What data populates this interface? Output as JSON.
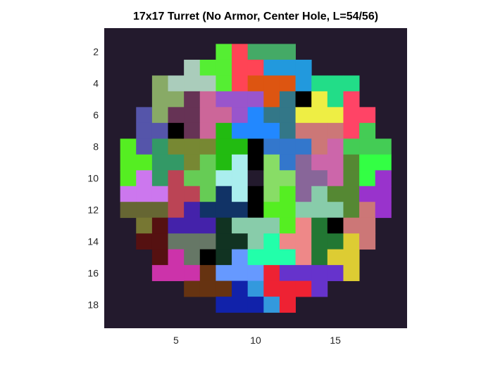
{
  "chart_data": {
    "type": "heatmap",
    "title": "17x17 Turret (No Armor, Center Hole, L=54/56)",
    "xlabel": "",
    "ylabel": "",
    "x_ticks": [
      "5",
      "10",
      "15"
    ],
    "y_ticks": [
      "2",
      "4",
      "6",
      "8",
      "10",
      "12",
      "14",
      "16",
      "18"
    ],
    "xlim": [
      0.5,
      19.5
    ],
    "ylim": [
      0.5,
      19.5
    ],
    "y_direction": "reverse",
    "background_color": "#231a2d",
    "grid": false,
    "legend": "none",
    "cells": [
      {
        "r": 2,
        "c": 8,
        "color": "#55ee33"
      },
      {
        "r": 2,
        "c": 9,
        "color": "#ff4455"
      },
      {
        "r": 2,
        "c": 10,
        "color": "#44aa66"
      },
      {
        "r": 2,
        "c": 11,
        "color": "#44aa66"
      },
      {
        "r": 2,
        "c": 12,
        "color": "#44aa66"
      },
      {
        "r": 3,
        "c": 6,
        "color": "#aaccbb"
      },
      {
        "r": 3,
        "c": 7,
        "color": "#55ee33"
      },
      {
        "r": 3,
        "c": 8,
        "color": "#55ee33"
      },
      {
        "r": 3,
        "c": 9,
        "color": "#ff4455"
      },
      {
        "r": 3,
        "c": 10,
        "color": "#ff4455"
      },
      {
        "r": 3,
        "c": 11,
        "color": "#2299dd"
      },
      {
        "r": 3,
        "c": 12,
        "color": "#2299dd"
      },
      {
        "r": 3,
        "c": 13,
        "color": "#2299dd"
      },
      {
        "r": 4,
        "c": 4,
        "color": "#88aa66"
      },
      {
        "r": 4,
        "c": 5,
        "color": "#aaccbb"
      },
      {
        "r": 4,
        "c": 6,
        "color": "#aaccbb"
      },
      {
        "r": 4,
        "c": 7,
        "color": "#aaccbb"
      },
      {
        "r": 4,
        "c": 8,
        "color": "#55ee33"
      },
      {
        "r": 4,
        "c": 9,
        "color": "#ff4455"
      },
      {
        "r": 4,
        "c": 10,
        "color": "#dd5511"
      },
      {
        "r": 4,
        "c": 11,
        "color": "#dd5511"
      },
      {
        "r": 4,
        "c": 12,
        "color": "#dd5511"
      },
      {
        "r": 4,
        "c": 13,
        "color": "#2299dd"
      },
      {
        "r": 4,
        "c": 14,
        "color": "#22dd88"
      },
      {
        "r": 4,
        "c": 15,
        "color": "#22dd88"
      },
      {
        "r": 4,
        "c": 16,
        "color": "#22dd88"
      },
      {
        "r": 5,
        "c": 4,
        "color": "#88aa66"
      },
      {
        "r": 5,
        "c": 5,
        "color": "#88aa66"
      },
      {
        "r": 5,
        "c": 6,
        "color": "#663355"
      },
      {
        "r": 5,
        "c": 7,
        "color": "#cc6699"
      },
      {
        "r": 5,
        "c": 8,
        "color": "#9955cc"
      },
      {
        "r": 5,
        "c": 9,
        "color": "#9955cc"
      },
      {
        "r": 5,
        "c": 10,
        "color": "#9955cc"
      },
      {
        "r": 5,
        "c": 11,
        "color": "#dd5511"
      },
      {
        "r": 5,
        "c": 12,
        "color": "#337788"
      },
      {
        "r": 5,
        "c": 13,
        "color": "#000000"
      },
      {
        "r": 5,
        "c": 14,
        "color": "#eeee44"
      },
      {
        "r": 5,
        "c": 15,
        "color": "#22dd88"
      },
      {
        "r": 5,
        "c": 16,
        "color": "#ff4466"
      },
      {
        "r": 6,
        "c": 3,
        "color": "#5555aa"
      },
      {
        "r": 6,
        "c": 4,
        "color": "#88aa66"
      },
      {
        "r": 6,
        "c": 5,
        "color": "#663355"
      },
      {
        "r": 6,
        "c": 6,
        "color": "#663355"
      },
      {
        "r": 6,
        "c": 7,
        "color": "#cc6699"
      },
      {
        "r": 6,
        "c": 8,
        "color": "#cc6699"
      },
      {
        "r": 6,
        "c": 9,
        "color": "#9955cc"
      },
      {
        "r": 6,
        "c": 10,
        "color": "#2288ff"
      },
      {
        "r": 6,
        "c": 11,
        "color": "#337788"
      },
      {
        "r": 6,
        "c": 12,
        "color": "#337788"
      },
      {
        "r": 6,
        "c": 13,
        "color": "#eeee44"
      },
      {
        "r": 6,
        "c": 14,
        "color": "#eeee44"
      },
      {
        "r": 6,
        "c": 15,
        "color": "#eeee44"
      },
      {
        "r": 6,
        "c": 16,
        "color": "#ff4466"
      },
      {
        "r": 6,
        "c": 17,
        "color": "#ff4466"
      },
      {
        "r": 7,
        "c": 3,
        "color": "#5555aa"
      },
      {
        "r": 7,
        "c": 4,
        "color": "#5555aa"
      },
      {
        "r": 7,
        "c": 5,
        "color": "#000000"
      },
      {
        "r": 7,
        "c": 6,
        "color": "#663355"
      },
      {
        "r": 7,
        "c": 7,
        "color": "#cc6699"
      },
      {
        "r": 7,
        "c": 8,
        "color": "#22bb11"
      },
      {
        "r": 7,
        "c": 9,
        "color": "#2288ff"
      },
      {
        "r": 7,
        "c": 10,
        "color": "#2288ff"
      },
      {
        "r": 7,
        "c": 11,
        "color": "#2288ff"
      },
      {
        "r": 7,
        "c": 12,
        "color": "#337788"
      },
      {
        "r": 7,
        "c": 13,
        "color": "#cc7777"
      },
      {
        "r": 7,
        "c": 14,
        "color": "#cc7777"
      },
      {
        "r": 7,
        "c": 15,
        "color": "#cc7777"
      },
      {
        "r": 7,
        "c": 16,
        "color": "#ff4466"
      },
      {
        "r": 7,
        "c": 17,
        "color": "#44cc55"
      },
      {
        "r": 8,
        "c": 2,
        "color": "#55ee22"
      },
      {
        "r": 8,
        "c": 3,
        "color": "#5555aa"
      },
      {
        "r": 8,
        "c": 4,
        "color": "#339966"
      },
      {
        "r": 8,
        "c": 5,
        "color": "#778833"
      },
      {
        "r": 8,
        "c": 6,
        "color": "#778833"
      },
      {
        "r": 8,
        "c": 7,
        "color": "#778833"
      },
      {
        "r": 8,
        "c": 8,
        "color": "#22bb11"
      },
      {
        "r": 8,
        "c": 9,
        "color": "#22bb11"
      },
      {
        "r": 8,
        "c": 10,
        "color": "#000000"
      },
      {
        "r": 8,
        "c": 11,
        "color": "#3377cc"
      },
      {
        "r": 8,
        "c": 12,
        "color": "#3377cc"
      },
      {
        "r": 8,
        "c": 13,
        "color": "#3377cc"
      },
      {
        "r": 8,
        "c": 14,
        "color": "#cc7777"
      },
      {
        "r": 8,
        "c": 15,
        "color": "#cc66aa"
      },
      {
        "r": 8,
        "c": 16,
        "color": "#44cc55"
      },
      {
        "r": 8,
        "c": 17,
        "color": "#44cc55"
      },
      {
        "r": 8,
        "c": 18,
        "color": "#44cc55"
      },
      {
        "r": 9,
        "c": 2,
        "color": "#55ee22"
      },
      {
        "r": 9,
        "c": 3,
        "color": "#55ee22"
      },
      {
        "r": 9,
        "c": 4,
        "color": "#339966"
      },
      {
        "r": 9,
        "c": 5,
        "color": "#339966"
      },
      {
        "r": 9,
        "c": 6,
        "color": "#778833"
      },
      {
        "r": 9,
        "c": 7,
        "color": "#66cc55"
      },
      {
        "r": 9,
        "c": 8,
        "color": "#22bb11"
      },
      {
        "r": 9,
        "c": 9,
        "color": "#aaeeee"
      },
      {
        "r": 9,
        "c": 10,
        "color": "#000000"
      },
      {
        "r": 9,
        "c": 11,
        "color": "#88dd66"
      },
      {
        "r": 9,
        "c": 12,
        "color": "#3377cc"
      },
      {
        "r": 9,
        "c": 13,
        "color": "#886699"
      },
      {
        "r": 9,
        "c": 14,
        "color": "#cc66aa"
      },
      {
        "r": 9,
        "c": 15,
        "color": "#cc66aa"
      },
      {
        "r": 9,
        "c": 16,
        "color": "#558833"
      },
      {
        "r": 9,
        "c": 17,
        "color": "#33ff44"
      },
      {
        "r": 9,
        "c": 18,
        "color": "#33ff44"
      },
      {
        "r": 10,
        "c": 2,
        "color": "#55ee22"
      },
      {
        "r": 10,
        "c": 3,
        "color": "#cc77ee"
      },
      {
        "r": 10,
        "c": 4,
        "color": "#339966"
      },
      {
        "r": 10,
        "c": 5,
        "color": "#bb4455"
      },
      {
        "r": 10,
        "c": 6,
        "color": "#66cc55"
      },
      {
        "r": 10,
        "c": 7,
        "color": "#66cc55"
      },
      {
        "r": 10,
        "c": 8,
        "color": "#aaeeee"
      },
      {
        "r": 10,
        "c": 9,
        "color": "#aaeeee"
      },
      {
        "r": 10,
        "c": 10,
        "color": "#231a2d"
      },
      {
        "r": 10,
        "c": 11,
        "color": "#88dd66"
      },
      {
        "r": 10,
        "c": 12,
        "color": "#88dd66"
      },
      {
        "r": 10,
        "c": 13,
        "color": "#886699"
      },
      {
        "r": 10,
        "c": 14,
        "color": "#886699"
      },
      {
        "r": 10,
        "c": 15,
        "color": "#cc66aa"
      },
      {
        "r": 10,
        "c": 16,
        "color": "#558833"
      },
      {
        "r": 10,
        "c": 17,
        "color": "#33ff44"
      },
      {
        "r": 10,
        "c": 18,
        "color": "#9933cc"
      },
      {
        "r": 11,
        "c": 2,
        "color": "#cc77ee"
      },
      {
        "r": 11,
        "c": 3,
        "color": "#cc77ee"
      },
      {
        "r": 11,
        "c": 4,
        "color": "#cc77ee"
      },
      {
        "r": 11,
        "c": 5,
        "color": "#bb4455"
      },
      {
        "r": 11,
        "c": 6,
        "color": "#bb4455"
      },
      {
        "r": 11,
        "c": 7,
        "color": "#66cc55"
      },
      {
        "r": 11,
        "c": 8,
        "color": "#113366"
      },
      {
        "r": 11,
        "c": 9,
        "color": "#aaeeee"
      },
      {
        "r": 11,
        "c": 10,
        "color": "#000000"
      },
      {
        "r": 11,
        "c": 11,
        "color": "#88dd66"
      },
      {
        "r": 11,
        "c": 12,
        "color": "#55ee22"
      },
      {
        "r": 11,
        "c": 13,
        "color": "#886699"
      },
      {
        "r": 11,
        "c": 14,
        "color": "#88ccaa"
      },
      {
        "r": 11,
        "c": 15,
        "color": "#558833"
      },
      {
        "r": 11,
        "c": 16,
        "color": "#558833"
      },
      {
        "r": 11,
        "c": 17,
        "color": "#9933cc"
      },
      {
        "r": 11,
        "c": 18,
        "color": "#9933cc"
      },
      {
        "r": 12,
        "c": 2,
        "color": "#666633"
      },
      {
        "r": 12,
        "c": 3,
        "color": "#666633"
      },
      {
        "r": 12,
        "c": 4,
        "color": "#666633"
      },
      {
        "r": 12,
        "c": 5,
        "color": "#bb4455"
      },
      {
        "r": 12,
        "c": 6,
        "color": "#4422aa"
      },
      {
        "r": 12,
        "c": 7,
        "color": "#113366"
      },
      {
        "r": 12,
        "c": 8,
        "color": "#113366"
      },
      {
        "r": 12,
        "c": 9,
        "color": "#113366"
      },
      {
        "r": 12,
        "c": 10,
        "color": "#000000"
      },
      {
        "r": 12,
        "c": 11,
        "color": "#55ee22"
      },
      {
        "r": 12,
        "c": 12,
        "color": "#55ee22"
      },
      {
        "r": 12,
        "c": 13,
        "color": "#88ccaa"
      },
      {
        "r": 12,
        "c": 14,
        "color": "#88ccaa"
      },
      {
        "r": 12,
        "c": 15,
        "color": "#88ccaa"
      },
      {
        "r": 12,
        "c": 16,
        "color": "#558833"
      },
      {
        "r": 12,
        "c": 17,
        "color": "#cc7777"
      },
      {
        "r": 12,
        "c": 18,
        "color": "#9933cc"
      },
      {
        "r": 13,
        "c": 3,
        "color": "#777733"
      },
      {
        "r": 13,
        "c": 4,
        "color": "#551111"
      },
      {
        "r": 13,
        "c": 5,
        "color": "#4422aa"
      },
      {
        "r": 13,
        "c": 6,
        "color": "#4422aa"
      },
      {
        "r": 13,
        "c": 7,
        "color": "#4422aa"
      },
      {
        "r": 13,
        "c": 8,
        "color": "#113322"
      },
      {
        "r": 13,
        "c": 9,
        "color": "#88ccaa"
      },
      {
        "r": 13,
        "c": 10,
        "color": "#88ccaa"
      },
      {
        "r": 13,
        "c": 11,
        "color": "#88ccaa"
      },
      {
        "r": 13,
        "c": 12,
        "color": "#55ee22"
      },
      {
        "r": 13,
        "c": 13,
        "color": "#ee8888"
      },
      {
        "r": 13,
        "c": 14,
        "color": "#227733"
      },
      {
        "r": 13,
        "c": 15,
        "color": "#000000"
      },
      {
        "r": 13,
        "c": 16,
        "color": "#cc7777"
      },
      {
        "r": 13,
        "c": 17,
        "color": "#cc7777"
      },
      {
        "r": 14,
        "c": 3,
        "color": "#551111"
      },
      {
        "r": 14,
        "c": 4,
        "color": "#551111"
      },
      {
        "r": 14,
        "c": 5,
        "color": "#667766"
      },
      {
        "r": 14,
        "c": 6,
        "color": "#667766"
      },
      {
        "r": 14,
        "c": 7,
        "color": "#667766"
      },
      {
        "r": 14,
        "c": 8,
        "color": "#113322"
      },
      {
        "r": 14,
        "c": 9,
        "color": "#113322"
      },
      {
        "r": 14,
        "c": 10,
        "color": "#88ccaa"
      },
      {
        "r": 14,
        "c": 11,
        "color": "#22ffaa"
      },
      {
        "r": 14,
        "c": 12,
        "color": "#ee8888"
      },
      {
        "r": 14,
        "c": 13,
        "color": "#ee8888"
      },
      {
        "r": 14,
        "c": 14,
        "color": "#227733"
      },
      {
        "r": 14,
        "c": 15,
        "color": "#227733"
      },
      {
        "r": 14,
        "c": 16,
        "color": "#ddcc33"
      },
      {
        "r": 14,
        "c": 17,
        "color": "#cc7777"
      },
      {
        "r": 15,
        "c": 4,
        "color": "#551111"
      },
      {
        "r": 15,
        "c": 5,
        "color": "#cc33aa"
      },
      {
        "r": 15,
        "c": 6,
        "color": "#667766"
      },
      {
        "r": 15,
        "c": 7,
        "color": "#000000"
      },
      {
        "r": 15,
        "c": 8,
        "color": "#113322"
      },
      {
        "r": 15,
        "c": 9,
        "color": "#6699ff"
      },
      {
        "r": 15,
        "c": 10,
        "color": "#22ffaa"
      },
      {
        "r": 15,
        "c": 11,
        "color": "#22ffaa"
      },
      {
        "r": 15,
        "c": 12,
        "color": "#22ffaa"
      },
      {
        "r": 15,
        "c": 13,
        "color": "#ee8888"
      },
      {
        "r": 15,
        "c": 14,
        "color": "#227733"
      },
      {
        "r": 15,
        "c": 15,
        "color": "#ddcc33"
      },
      {
        "r": 15,
        "c": 16,
        "color": "#ddcc33"
      },
      {
        "r": 16,
        "c": 4,
        "color": "#cc33aa"
      },
      {
        "r": 16,
        "c": 5,
        "color": "#cc33aa"
      },
      {
        "r": 16,
        "c": 6,
        "color": "#cc33aa"
      },
      {
        "r": 16,
        "c": 7,
        "color": "#663311"
      },
      {
        "r": 16,
        "c": 8,
        "color": "#6699ff"
      },
      {
        "r": 16,
        "c": 9,
        "color": "#6699ff"
      },
      {
        "r": 16,
        "c": 10,
        "color": "#6699ff"
      },
      {
        "r": 16,
        "c": 11,
        "color": "#ee2233"
      },
      {
        "r": 16,
        "c": 12,
        "color": "#6633cc"
      },
      {
        "r": 16,
        "c": 13,
        "color": "#6633cc"
      },
      {
        "r": 16,
        "c": 14,
        "color": "#6633cc"
      },
      {
        "r": 16,
        "c": 15,
        "color": "#6633cc"
      },
      {
        "r": 16,
        "c": 16,
        "color": "#ddcc33"
      },
      {
        "r": 17,
        "c": 6,
        "color": "#663311"
      },
      {
        "r": 17,
        "c": 7,
        "color": "#663311"
      },
      {
        "r": 17,
        "c": 8,
        "color": "#663311"
      },
      {
        "r": 17,
        "c": 9,
        "color": "#1122aa"
      },
      {
        "r": 17,
        "c": 10,
        "color": "#3399dd"
      },
      {
        "r": 17,
        "c": 11,
        "color": "#ee2233"
      },
      {
        "r": 17,
        "c": 12,
        "color": "#ee2233"
      },
      {
        "r": 17,
        "c": 13,
        "color": "#ee2233"
      },
      {
        "r": 17,
        "c": 14,
        "color": "#6633cc"
      },
      {
        "r": 18,
        "c": 8,
        "color": "#1122aa"
      },
      {
        "r": 18,
        "c": 9,
        "color": "#1122aa"
      },
      {
        "r": 18,
        "c": 10,
        "color": "#1122aa"
      },
      {
        "r": 18,
        "c": 11,
        "color": "#3399dd"
      },
      {
        "r": 18,
        "c": 12,
        "color": "#ee2233"
      }
    ]
  }
}
